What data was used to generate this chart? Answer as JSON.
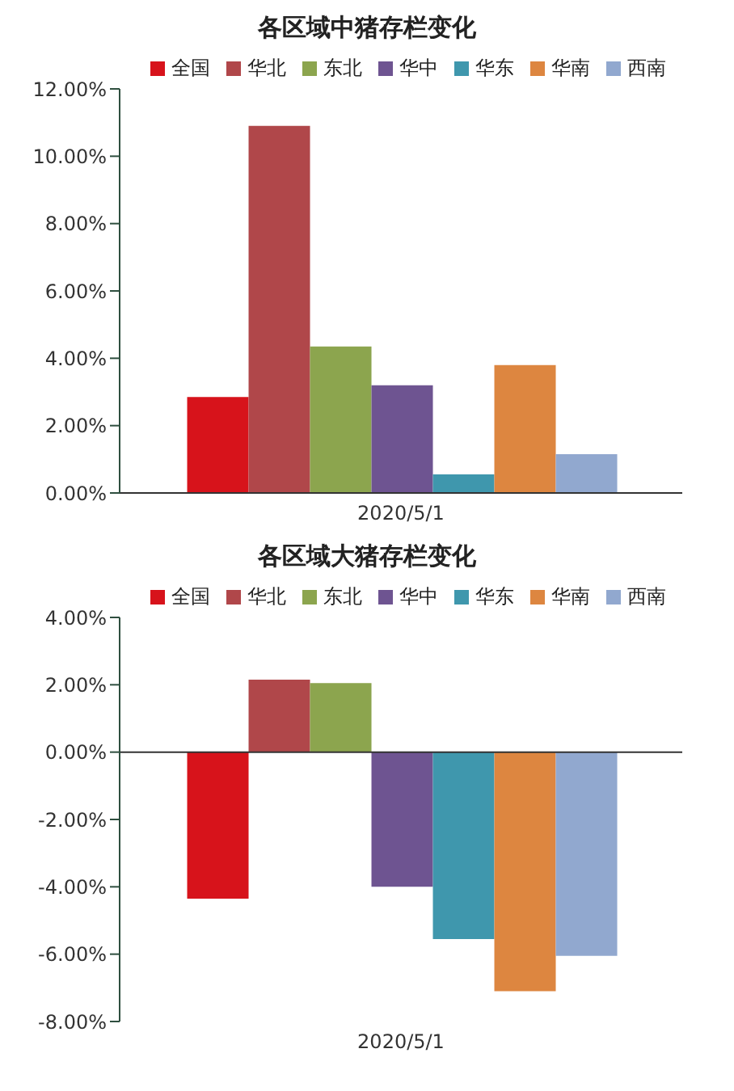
{
  "chart_data": [
    {
      "type": "bar",
      "title": "各区域中猪存栏变化",
      "categories": [
        "2020/5/1"
      ],
      "series": [
        {
          "name": "全国",
          "color": "#d7131b",
          "values": [
            2.85
          ]
        },
        {
          "name": "华北",
          "color": "#b0474a",
          "values": [
            10.9
          ]
        },
        {
          "name": "东北",
          "color": "#8ca54e",
          "values": [
            4.35
          ]
        },
        {
          "name": "华中",
          "color": "#6e5491",
          "values": [
            3.2
          ]
        },
        {
          "name": "华东",
          "color": "#3f97ad",
          "values": [
            0.55
          ]
        },
        {
          "name": "华南",
          "color": "#dd8640",
          "values": [
            3.8
          ]
        },
        {
          "name": "西南",
          "color": "#91a8cf",
          "values": [
            1.15
          ]
        }
      ],
      "ylim": [
        0,
        12
      ],
      "yticks": [
        {
          "value": 0,
          "label": "0.00%"
        },
        {
          "value": 2,
          "label": "2.00%"
        },
        {
          "value": 4,
          "label": "4.00%"
        },
        {
          "value": 6,
          "label": "6.00%"
        },
        {
          "value": 8,
          "label": "8.00%"
        },
        {
          "value": 10,
          "label": "10.00%"
        },
        {
          "value": 12,
          "label": "12.00%"
        }
      ],
      "grid": false,
      "legend": "top right"
    },
    {
      "type": "bar",
      "title": "各区域大猪存栏变化",
      "categories": [
        "2020/5/1"
      ],
      "series": [
        {
          "name": "全国",
          "color": "#d7131b",
          "values": [
            -4.35
          ]
        },
        {
          "name": "华北",
          "color": "#b0474a",
          "values": [
            2.15
          ]
        },
        {
          "name": "东北",
          "color": "#8ca54e",
          "values": [
            2.05
          ]
        },
        {
          "name": "华中",
          "color": "#6e5491",
          "values": [
            -4.0
          ]
        },
        {
          "name": "华东",
          "color": "#3f97ad",
          "values": [
            -5.55
          ]
        },
        {
          "name": "华南",
          "color": "#dd8640",
          "values": [
            -7.1
          ]
        },
        {
          "name": "西南",
          "color": "#91a8cf",
          "values": [
            -6.05
          ]
        }
      ],
      "ylim": [
        -8,
        4
      ],
      "yticks": [
        {
          "value": -8,
          "label": "-8.00%"
        },
        {
          "value": -6,
          "label": "-6.00%"
        },
        {
          "value": -4,
          "label": "-4.00%"
        },
        {
          "value": -2,
          "label": "-2.00%"
        },
        {
          "value": 0,
          "label": "0.00%"
        },
        {
          "value": 2,
          "label": "2.00%"
        },
        {
          "value": 4,
          "label": "4.00%"
        }
      ],
      "ref_lines": [
        {
          "axis": "y",
          "value": 0,
          "color": "#333333"
        }
      ],
      "grid": false,
      "legend": "top right"
    }
  ]
}
